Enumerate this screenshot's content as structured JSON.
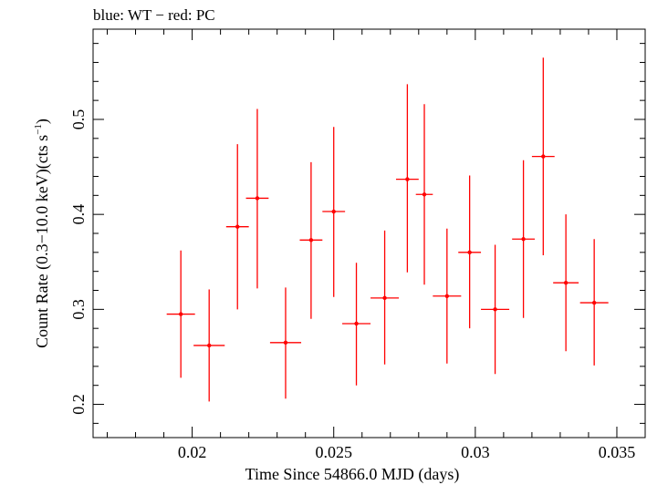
{
  "chart_data": {
    "type": "scatter",
    "title": "blue: WT − red: PC",
    "xlabel": "Time Since 54866.0 MJD (days)",
    "ylabel_main": "Count Rate (0.3−10.0 keV)(cts s",
    "ylabel_sup": "−1",
    "ylabel_tail": ")",
    "xlim": [
      0.0165,
      0.036
    ],
    "ylim": [
      0.165,
      0.595
    ],
    "x_ticks": [
      {
        "value": 0.02,
        "label": "0.02"
      },
      {
        "value": 0.025,
        "label": "0.025"
      },
      {
        "value": 0.03,
        "label": "0.03"
      },
      {
        "value": 0.035,
        "label": "0.035"
      }
    ],
    "y_ticks": [
      {
        "value": 0.2,
        "label": "0.2"
      },
      {
        "value": 0.3,
        "label": "0.3"
      },
      {
        "value": 0.4,
        "label": "0.4"
      },
      {
        "value": 0.5,
        "label": "0.5"
      }
    ],
    "series": [
      {
        "color": "#ff0000",
        "points": [
          {
            "x": 0.0196,
            "y": 0.295,
            "xerr": 0.0005,
            "ylo": 0.228,
            "yhi": 0.362
          },
          {
            "x": 0.0206,
            "y": 0.262,
            "xerr": 0.00055,
            "ylo": 0.203,
            "yhi": 0.321
          },
          {
            "x": 0.0216,
            "y": 0.387,
            "xerr": 0.0004,
            "ylo": 0.3,
            "yhi": 0.474
          },
          {
            "x": 0.0223,
            "y": 0.417,
            "xerr": 0.0004,
            "ylo": 0.322,
            "yhi": 0.511
          },
          {
            "x": 0.0233,
            "y": 0.265,
            "xerr": 0.00055,
            "ylo": 0.206,
            "yhi": 0.323
          },
          {
            "x": 0.0242,
            "y": 0.373,
            "xerr": 0.0004,
            "ylo": 0.29,
            "yhi": 0.455
          },
          {
            "x": 0.025,
            "y": 0.403,
            "xerr": 0.0004,
            "ylo": 0.313,
            "yhi": 0.492
          },
          {
            "x": 0.0258,
            "y": 0.285,
            "xerr": 0.0005,
            "ylo": 0.22,
            "yhi": 0.349
          },
          {
            "x": 0.0268,
            "y": 0.312,
            "xerr": 0.0005,
            "ylo": 0.242,
            "yhi": 0.383
          },
          {
            "x": 0.0276,
            "y": 0.437,
            "xerr": 0.0004,
            "ylo": 0.339,
            "yhi": 0.537
          },
          {
            "x": 0.0282,
            "y": 0.421,
            "xerr": 0.0003,
            "ylo": 0.326,
            "yhi": 0.516
          },
          {
            "x": 0.029,
            "y": 0.314,
            "xerr": 0.0005,
            "ylo": 0.243,
            "yhi": 0.385
          },
          {
            "x": 0.0298,
            "y": 0.36,
            "xerr": 0.0004,
            "ylo": 0.28,
            "yhi": 0.441
          },
          {
            "x": 0.0307,
            "y": 0.3,
            "xerr": 0.0005,
            "ylo": 0.232,
            "yhi": 0.368
          },
          {
            "x": 0.0317,
            "y": 0.374,
            "xerr": 0.0004,
            "ylo": 0.291,
            "yhi": 0.457
          },
          {
            "x": 0.0324,
            "y": 0.461,
            "xerr": 0.0004,
            "ylo": 0.357,
            "yhi": 0.565
          },
          {
            "x": 0.0332,
            "y": 0.328,
            "xerr": 0.00045,
            "ylo": 0.256,
            "yhi": 0.4
          },
          {
            "x": 0.0342,
            "y": 0.307,
            "xerr": 0.0005,
            "ylo": 0.241,
            "yhi": 0.374
          }
        ]
      }
    ],
    "grid": false,
    "legend": "none"
  }
}
